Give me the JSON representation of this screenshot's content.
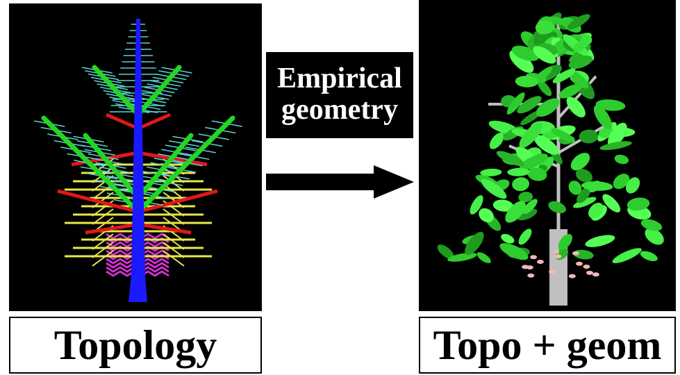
{
  "left_caption": "Topology",
  "right_caption": "Topo + geom",
  "transition": {
    "line1": "Empirical",
    "line2": "geometry"
  },
  "colors": {
    "trunk": "#1a1aff",
    "primary_branch": "#22d622",
    "secondary_branch": "#e01818",
    "tertiary": "#e8e84a",
    "leaf_stub": "#5ad4d4",
    "basal": "#d030d0",
    "leaf": "#3adf3a",
    "stem": "#bfbfbf",
    "bud": "#f0b8b8"
  }
}
